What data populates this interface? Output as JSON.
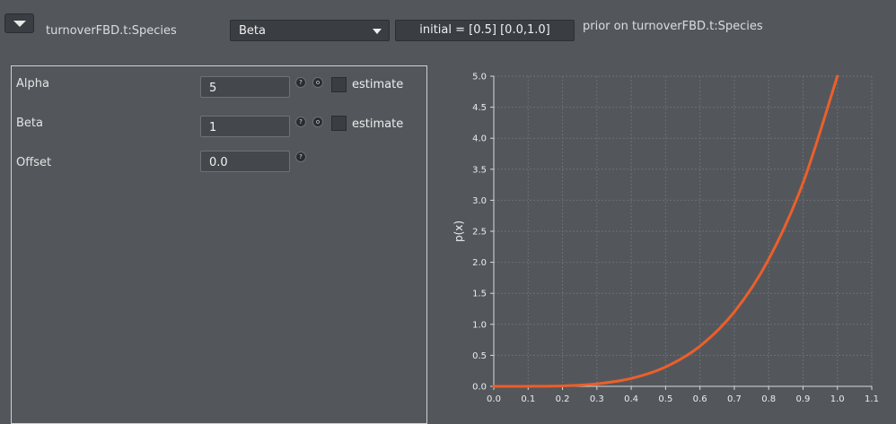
{
  "header": {
    "param_name": "turnoverFBD.t:Species",
    "distribution": "Beta",
    "initial_button": "initial = [0.5] [0.0,1.0]",
    "prior_label": "prior on turnoverFBD.t:Species"
  },
  "params": [
    {
      "label": "Alpha",
      "value": "5",
      "has_estimate": true,
      "estimate_label": "estimate",
      "estimate_checked": false
    },
    {
      "label": "Beta",
      "value": "1",
      "has_estimate": true,
      "estimate_label": "estimate",
      "estimate_checked": false
    },
    {
      "label": "Offset",
      "value": "0.0",
      "has_estimate": false
    }
  ],
  "icons": {
    "help": "question-icon",
    "options": "circle-icon"
  },
  "colors": {
    "curve": "#ec5f2a",
    "background": "#53575c"
  },
  "chart_data": {
    "type": "line",
    "ylabel": "p(x)",
    "xlabel": "",
    "xlim": [
      0.0,
      1.1
    ],
    "ylim": [
      0.0,
      5.0
    ],
    "x_ticks": [
      "0.0",
      "0.1",
      "0.2",
      "0.3",
      "0.4",
      "0.5",
      "0.6",
      "0.7",
      "0.8",
      "0.9",
      "1.0",
      "1.1"
    ],
    "y_ticks": [
      "0.0",
      "0.5",
      "1.0",
      "1.5",
      "2.0",
      "2.5",
      "3.0",
      "3.5",
      "4.0",
      "4.5",
      "5.0"
    ],
    "grid": true,
    "series": [
      {
        "x": [
          0.0,
          0.1,
          0.2,
          0.3,
          0.4,
          0.5,
          0.6,
          0.7,
          0.8,
          0.9,
          1.0
        ],
        "y": [
          0.0,
          0.0005,
          0.008,
          0.0405,
          0.128,
          0.3125,
          0.648,
          1.2005,
          2.048,
          3.2805,
          5.0
        ]
      }
    ]
  }
}
